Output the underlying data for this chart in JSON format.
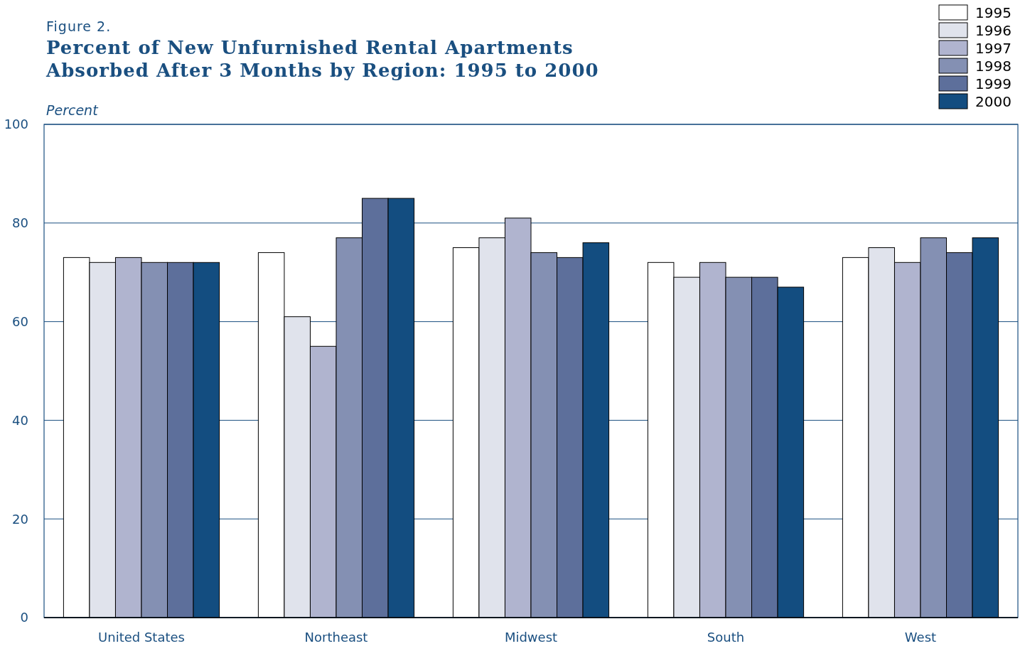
{
  "chart_data": {
    "type": "bar",
    "subtitle": "Figure 2.",
    "title": "Percent of New Unfurnished Rental Apartments Absorbed After 3 Months by Region:  1995 to 2000",
    "ylabel": "Percent",
    "categories": [
      "United States",
      "Northeast",
      "Midwest",
      "South",
      "West"
    ],
    "series": [
      {
        "name": "1995",
        "color": "#ffffff",
        "values": [
          73,
          74,
          75,
          72,
          73
        ]
      },
      {
        "name": "1996",
        "color": "#e0e3ec",
        "values": [
          72,
          61,
          77,
          69,
          75
        ]
      },
      {
        "name": "1997",
        "color": "#b0b4cf",
        "values": [
          73,
          55,
          81,
          72,
          72
        ]
      },
      {
        "name": "1998",
        "color": "#8490b3",
        "values": [
          72,
          77,
          74,
          69,
          77
        ]
      },
      {
        "name": "1999",
        "color": "#5d6f9b",
        "values": [
          72,
          85,
          73,
          69,
          74
        ]
      },
      {
        "name": "2000",
        "color": "#134d80",
        "values": [
          72,
          85,
          76,
          67,
          77
        ]
      }
    ],
    "ylim": [
      0,
      100
    ],
    "yticks": [
      0,
      20,
      40,
      60,
      80,
      100
    ],
    "grid": "y",
    "legend": "top right"
  }
}
